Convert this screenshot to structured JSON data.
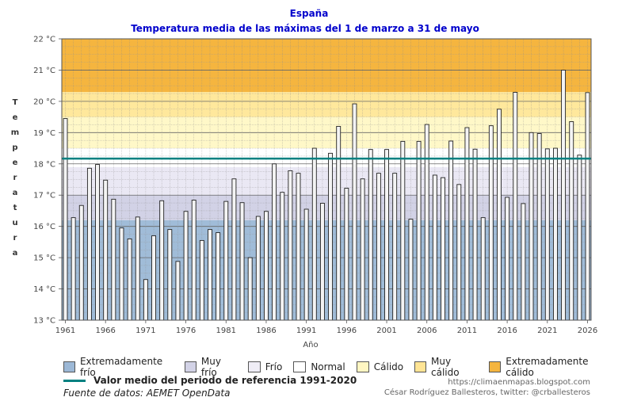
{
  "chart_data": {
    "type": "bar",
    "title": "España",
    "subtitle": "Temperatura media de las máximas del 1 de marzo a 31 de mayo",
    "xlabel": "Año",
    "ylabel": "Temperatura",
    "ylim": [
      13,
      22
    ],
    "yticks": [
      "13 °C",
      "14 °C",
      "15 °C",
      "16 °C",
      "17 °C",
      "18 °C",
      "19 °C",
      "20 °C",
      "21 °C",
      "22 °C"
    ],
    "xticks": [
      "1961",
      "1966",
      "1971",
      "1976",
      "1981",
      "1986",
      "1991",
      "1996",
      "2001",
      "2006",
      "2011",
      "2016",
      "2021",
      "2026"
    ],
    "x_range": [
      1961,
      2026
    ],
    "grid": true,
    "years": [
      1961,
      1962,
      1963,
      1964,
      1965,
      1966,
      1967,
      1968,
      1969,
      1970,
      1971,
      1972,
      1973,
      1974,
      1975,
      1976,
      1977,
      1978,
      1979,
      1980,
      1981,
      1982,
      1983,
      1984,
      1985,
      1986,
      1987,
      1988,
      1989,
      1990,
      1991,
      1992,
      1993,
      1994,
      1995,
      1996,
      1997,
      1998,
      1999,
      2000,
      2001,
      2002,
      2003,
      2004,
      2005,
      2006,
      2007,
      2008,
      2009,
      2010,
      2011,
      2012,
      2013,
      2014,
      2015,
      2016,
      2017,
      2018,
      2019,
      2020,
      2021,
      2022,
      2023,
      2024,
      2025
    ],
    "values": [
      19.45,
      16.28,
      16.67,
      17.86,
      17.98,
      17.48,
      16.87,
      15.95,
      15.6,
      16.3,
      14.3,
      15.7,
      16.82,
      15.9,
      14.88,
      16.48,
      16.84,
      15.55,
      15.9,
      15.8,
      16.8,
      17.52,
      16.76,
      15.0,
      16.32,
      16.48,
      18.0,
      17.09,
      17.78,
      17.7,
      16.55,
      18.5,
      16.74,
      18.34,
      19.2,
      17.22,
      19.92,
      17.52,
      18.46,
      17.7,
      18.46,
      17.7,
      18.72,
      16.23,
      18.72,
      19.26,
      17.64,
      17.56,
      18.73,
      17.34,
      19.16,
      18.47,
      16.28,
      19.22,
      19.75,
      16.93,
      20.29,
      16.73,
      19.0,
      18.97,
      18.48,
      18.5,
      21.0,
      19.35,
      18.28
    ],
    "extra_bar": {
      "year": 2026,
      "value": 20.28
    },
    "reference": {
      "label": "Valor medio del periodo de referencia 1991-2020",
      "value": 18.17,
      "color": "#008080"
    },
    "bands": [
      {
        "name": "Extremadamente frío",
        "from": 13,
        "to": 16.2,
        "color": "#a0bcd8"
      },
      {
        "name": "Muy frío",
        "from": 16.2,
        "to": 17.0,
        "color": "#d2d2e6"
      },
      {
        "name": "Frío",
        "from": 17.0,
        "to": 17.9,
        "color": "#eae8f4"
      },
      {
        "name": "Normal",
        "from": 17.9,
        "to": 18.5,
        "color": "#ffffff"
      },
      {
        "name": "Cálido",
        "from": 18.5,
        "to": 19.5,
        "color": "#fff8c8"
      },
      {
        "name": "Muy cálido",
        "from": 19.5,
        "to": 20.3,
        "color": "#ffe89c"
      },
      {
        "name": "Extremadamente cálido",
        "from": 20.3,
        "to": 22,
        "color": "#f5b53f"
      }
    ]
  },
  "legend": {
    "items": [
      {
        "label": "Extremadamente frío",
        "color": "#9cb8d6"
      },
      {
        "label": "Muy frío",
        "color": "#d2d2e6"
      },
      {
        "label": "Frío",
        "color": "#efedf6"
      },
      {
        "label": "Normal",
        "color": "#ffffff"
      },
      {
        "label": "Cálido",
        "color": "#fff6c2"
      },
      {
        "label": "Muy cálido",
        "color": "#ffe494"
      },
      {
        "label": "Extremadamente cálido",
        "color": "#f5b53f"
      }
    ]
  },
  "footer": {
    "reference_label": "Valor medio del periodo de referencia 1991-2020",
    "source": "Fuente de datos: AEMET OpenData",
    "blog": "https://climaenmapas.blogspot.com",
    "author": "César Rodríguez Ballesteros, twitter: @crballesteros"
  }
}
